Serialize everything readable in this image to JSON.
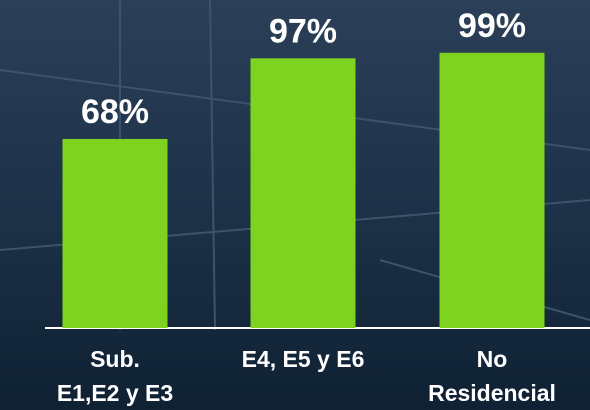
{
  "chart_data": {
    "type": "bar",
    "categories": [
      "Sub.\nE1,E2 y E3",
      "E4, E5 y E6",
      "No\nResidencial"
    ],
    "values": [
      68,
      97,
      99
    ],
    "value_labels": [
      "68%",
      "97%",
      "99%"
    ],
    "color": "#7ed321"
  }
}
